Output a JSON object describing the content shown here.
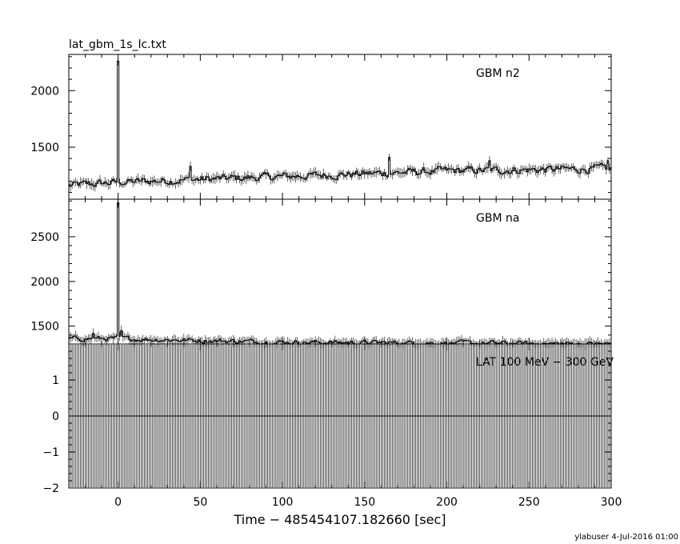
{
  "chart_data": {
    "type": "line",
    "title": "lat_gbm_1s_lc.txt",
    "xlabel": "Time − 485454107.182660 [sec]",
    "xlim": [
      -30,
      300
    ],
    "xticks": [
      0,
      50,
      100,
      150,
      200,
      250,
      300
    ],
    "footer": "ylabuser  4-Jul-2016 01:00",
    "panels": [
      {
        "series_name": "GBM n2",
        "ylim": [
          1040,
          2320
        ],
        "yticks": [
          1500,
          2000
        ],
        "baseline": [
          [
            -30,
            1160
          ],
          [
            0,
            1190
          ],
          [
            100,
            1240
          ],
          [
            200,
            1290
          ],
          [
            300,
            1310
          ]
        ],
        "noise": 35,
        "features": [
          {
            "x": 0,
            "y": 2260
          },
          {
            "x": 44,
            "y": 1330
          },
          {
            "x": 165,
            "y": 1410
          },
          {
            "x": 226,
            "y": 1380
          },
          {
            "x": 298,
            "y": 1380
          }
        ]
      },
      {
        "series_name": "GBM na",
        "ylim": [
          1300,
          2920
        ],
        "yticks": [
          1500,
          2000,
          2500
        ],
        "baseline": [
          [
            -30,
            1360
          ],
          [
            0,
            1360
          ],
          [
            100,
            1320
          ],
          [
            200,
            1310
          ],
          [
            300,
            1300
          ]
        ],
        "noise": 28,
        "features": [
          {
            "x": 0,
            "y": 2880
          },
          {
            "x": 2,
            "y": 1450
          },
          {
            "x": -15,
            "y": 1420
          }
        ]
      },
      {
        "series_name": "LAT 100 MeV − 300 GeV",
        "ylim": [
          -2,
          2
        ],
        "yticks": [
          -2,
          -1,
          0,
          1
        ],
        "value": 0,
        "bar_spacing": 1
      }
    ]
  }
}
